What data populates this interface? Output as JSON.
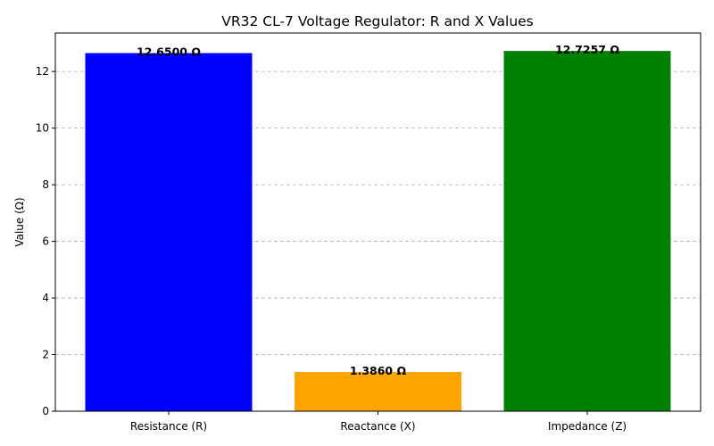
{
  "chart_data": {
    "type": "bar",
    "title": "VR32 CL-7 Voltage Regulator: R and X Values",
    "xlabel": "",
    "ylabel": "Value (Ω)",
    "categories": [
      "Resistance (R)",
      "Reactance (X)",
      "Impedance (Z)"
    ],
    "values": [
      12.65,
      1.386,
      12.7257
    ],
    "data_labels": [
      "12.6500 Ω",
      "1.3860 Ω",
      "12.7257 Ω"
    ],
    "colors": [
      "#0000ff",
      "#ffa500",
      "#008000"
    ],
    "ylim": [
      0,
      13.36
    ],
    "yticks": [
      0,
      2,
      4,
      6,
      8,
      10,
      12
    ],
    "grid": true
  }
}
